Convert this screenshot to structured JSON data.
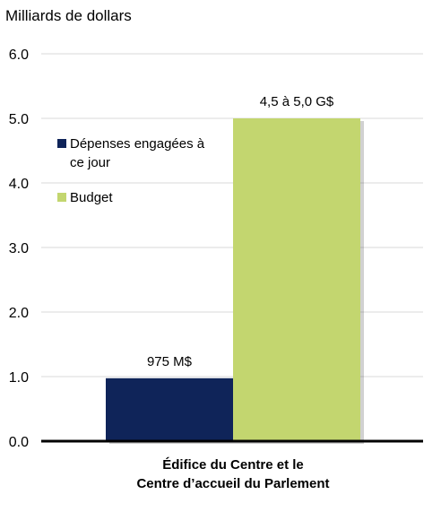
{
  "chart_data": {
    "type": "bar",
    "ylabel": "Milliards de dollars",
    "ylim": [
      0,
      6
    ],
    "yticks": [
      "0.0",
      "1.0",
      "2.0",
      "3.0",
      "4.0",
      "5.0",
      "6.0"
    ],
    "category_lines": [
      "Édifice du Centre et le",
      "Centre d’accueil du Parlement"
    ],
    "grid": true,
    "legend_position": "upper-left",
    "series": [
      {
        "name": "Dépenses engagées à ce jour",
        "value": 0.975,
        "label": "975 M$",
        "color": "#0f2459"
      },
      {
        "name": "Budget",
        "value": 5.0,
        "label": "4,5 à 5,0 G$",
        "color": "#c3d66f"
      }
    ]
  }
}
